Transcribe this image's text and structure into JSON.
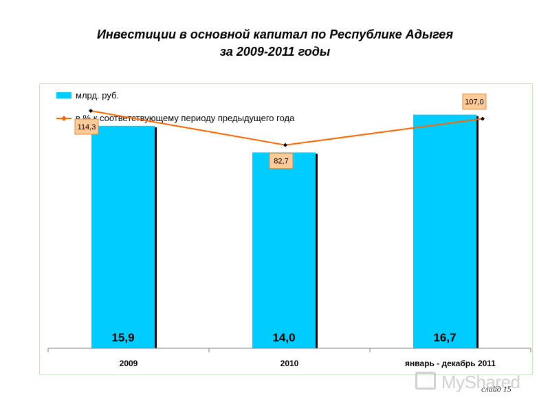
{
  "title_line1": "Инвестиции в основной капитал по Республике Адыгея",
  "title_line2": "за 2009-2011 годы",
  "slide_label": "слайд 15",
  "watermark_text": "MyShared",
  "colors": {
    "bar": "#00ccff",
    "bar_shadow": "#000000",
    "line": "#ff6600",
    "marker": "#000000",
    "label_fill": "#ffcc99",
    "label_border": "#d48a4a",
    "frame": "#c8e6c0"
  },
  "chart_data": {
    "type": "bar",
    "categories": [
      "2009",
      "2010",
      "январь - декабрь 2011"
    ],
    "series": [
      {
        "name": "млрд. руб.",
        "type": "bar",
        "values": [
          15.9,
          14.0,
          16.7
        ],
        "value_labels": [
          "15,9",
          "14,0",
          "16,7"
        ]
      },
      {
        "name": "в % к соответствующему периоду предыдущего года",
        "type": "line",
        "values": [
          114.3,
          82.7,
          107.0
        ],
        "value_labels": [
          "114,3",
          "82,7",
          "107,0"
        ]
      }
    ],
    "ylim": [
      0,
      18.5
    ],
    "y2lim": [
      -105,
      134
    ],
    "legend_position": "top-left",
    "grid": false
  }
}
